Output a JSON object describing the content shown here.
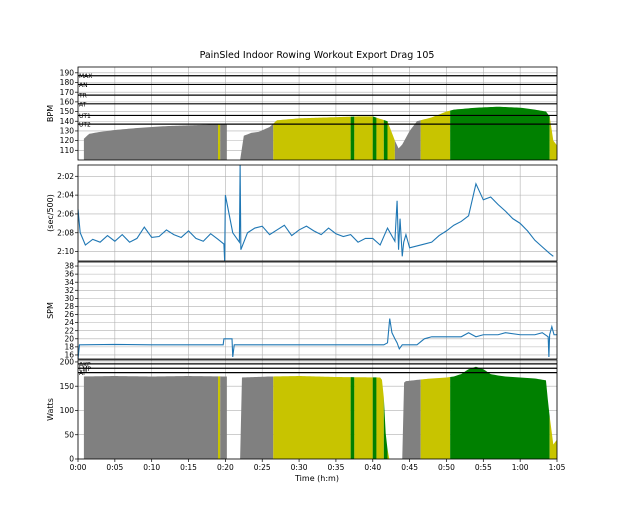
{
  "chart_data": {
    "title": "PainSled Indoor Rowing Workout Export Drag 105",
    "xlabel": "Time (h:m)",
    "x_unit": "minutes",
    "x_ticks": [
      "0:00",
      "0:05",
      "0:10",
      "0:15",
      "0:20",
      "0:25",
      "0:30",
      "0:35",
      "0:40",
      "0:45",
      "0:50",
      "0:55",
      "1:00",
      "1:05"
    ],
    "xlim": [
      0,
      65
    ],
    "colors": {
      "grey": "#808080",
      "yellow": "#c8c400",
      "green": "#008000",
      "line": "#1f77b4"
    },
    "segments": [
      {
        "from": 0.8,
        "to": 19.0,
        "zone": "grey"
      },
      {
        "from": 19.0,
        "to": 19.3,
        "zone": "yellow"
      },
      {
        "from": 19.3,
        "to": 20.2,
        "zone": "grey"
      },
      {
        "from": 22.0,
        "to": 26.5,
        "zone": "grey"
      },
      {
        "from": 26.5,
        "to": 37.0,
        "zone": "yellow"
      },
      {
        "from": 37.0,
        "to": 37.5,
        "zone": "green"
      },
      {
        "from": 37.5,
        "to": 40.0,
        "zone": "yellow"
      },
      {
        "from": 40.0,
        "to": 40.5,
        "zone": "green"
      },
      {
        "from": 40.5,
        "to": 41.5,
        "zone": "yellow"
      },
      {
        "from": 41.5,
        "to": 42.0,
        "zone": "green"
      },
      {
        "from": 42.0,
        "to": 43.0,
        "zone": "yellow"
      },
      {
        "from": 43.0,
        "to": 46.5,
        "zone": "grey"
      },
      {
        "from": 46.5,
        "to": 50.5,
        "zone": "yellow"
      },
      {
        "from": 50.5,
        "to": 64.0,
        "zone": "green"
      },
      {
        "from": 64.0,
        "to": 65.0,
        "zone": "yellow"
      }
    ],
    "panels": [
      {
        "id": "hr",
        "type": "area",
        "ylabel": "BPM",
        "ylim": [
          100,
          196
        ],
        "yticks": [
          110,
          120,
          130,
          140,
          150,
          160,
          170,
          180,
          190
        ],
        "zones": [
          {
            "label": "MAX",
            "value": 187
          },
          {
            "label": "AN",
            "value": 178
          },
          {
            "label": "TR",
            "value": 167
          },
          {
            "label": "AT",
            "value": 158
          },
          {
            "label": "UT1",
            "value": 146
          },
          {
            "label": "UT2",
            "value": 137
          }
        ],
        "x": [
          0,
          0.8,
          1.5,
          3,
          5,
          8,
          12,
          16,
          19,
          20.2,
          20.3,
          22,
          22.5,
          23.5,
          24.5,
          26,
          27,
          30,
          34,
          38,
          40,
          42,
          43,
          43.5,
          44,
          45,
          46,
          48,
          50,
          51,
          54,
          57,
          60,
          62,
          63.5,
          64,
          64.5,
          65
        ],
        "y": [
          100,
          122,
          127,
          129,
          131,
          133,
          135,
          136,
          137,
          137,
          100,
          100,
          125,
          128,
          129,
          134,
          141,
          143,
          144,
          145,
          145,
          140,
          120,
          112,
          116,
          130,
          140,
          144,
          150,
          152,
          154,
          155,
          154,
          152,
          150,
          145,
          120,
          115
        ]
      },
      {
        "id": "pace",
        "type": "line",
        "ylabel": "(sec/500)",
        "ylim": [
          131,
          120.8
        ],
        "yticks": [
          122,
          124,
          126,
          128,
          130
        ],
        "ytick_labels": [
          "2:02",
          "2:04",
          "2:06",
          "2:08",
          "2:10"
        ],
        "x": [
          0,
          0.3,
          1,
          2,
          3,
          4,
          5,
          6,
          7,
          8,
          9,
          10,
          11,
          12,
          13,
          14,
          15,
          16,
          17,
          18,
          19,
          19.8,
          19.9,
          20,
          21,
          21.9,
          22,
          22.1,
          23,
          24,
          25,
          26,
          27,
          28,
          29,
          30,
          31,
          32,
          33,
          34,
          35,
          36,
          37,
          38,
          39,
          40,
          41,
          42,
          43,
          43.3,
          43.5,
          43.7,
          44,
          44.2,
          44.5,
          45,
          46,
          47,
          48,
          49,
          50,
          51,
          52,
          53,
          54,
          55,
          56,
          57,
          58,
          59,
          60,
          61,
          62,
          63,
          64,
          64.5
        ],
        "y": [
          125.5,
          128,
          129.3,
          128.7,
          129,
          128.3,
          128.9,
          128.2,
          129,
          128.6,
          127.4,
          128.5,
          128.4,
          127.7,
          128.2,
          128.5,
          127.8,
          128.6,
          128.9,
          128.1,
          128.7,
          129.2,
          131,
          124,
          128,
          129,
          120.8,
          129.8,
          128,
          127.5,
          127.3,
          128.2,
          127.7,
          127.2,
          128.3,
          127.7,
          127.3,
          127.8,
          128.2,
          127.5,
          128.1,
          128.4,
          128.2,
          129,
          128.6,
          128.6,
          129.3,
          127.5,
          128.9,
          124.6,
          129.8,
          126.5,
          130.5,
          129,
          128.2,
          129.6,
          129.4,
          129.2,
          129,
          128.3,
          127.8,
          127.2,
          126.8,
          126.2,
          122.8,
          124.5,
          124.2,
          125,
          125.7,
          126.5,
          127,
          127.8,
          128.8,
          129.5,
          130.2,
          130.5
        ]
      },
      {
        "id": "spm",
        "type": "line",
        "ylabel": "SPM",
        "ylim": [
          15,
          39
        ],
        "yticks": [
          16,
          18,
          20,
          22,
          24,
          26,
          28,
          30,
          32,
          34,
          36,
          38
        ],
        "x": [
          0,
          0.2,
          0.3,
          5,
          10,
          15,
          19.7,
          19.8,
          20,
          20.9,
          21,
          21.2,
          22,
          30,
          38,
          41,
          41.5,
          42,
          42.3,
          42.6,
          43,
          43.3,
          43.6,
          44,
          45,
          46,
          47,
          48,
          50,
          52,
          53,
          54,
          55,
          57,
          58,
          60,
          62,
          63,
          63.8,
          63.9,
          64,
          64.3,
          64.6,
          65
        ],
        "y": [
          15,
          18.5,
          18.5,
          18.6,
          18.5,
          18.5,
          18.5,
          20,
          20,
          20,
          15.5,
          18.5,
          18.5,
          18.5,
          18.5,
          18.5,
          18.5,
          19,
          25,
          21.5,
          20,
          19,
          17.5,
          18.5,
          18.5,
          18.5,
          20,
          20.5,
          20.5,
          20.5,
          21.5,
          20.5,
          21,
          21,
          21.5,
          21,
          21,
          21.5,
          20.5,
          15.5,
          21,
          23,
          21,
          21
        ]
      },
      {
        "id": "watts",
        "type": "area",
        "ylabel": "Watts",
        "ylim": [
          0,
          204
        ],
        "yticks": [
          0,
          50,
          100,
          150,
          200
        ],
        "zones": [
          {
            "label": "AKP",
            "value": 196
          },
          {
            "label": "LMP",
            "value": 187
          },
          {
            "label": "AP",
            "value": 178
          }
        ],
        "x": [
          0,
          0.1,
          0.3,
          5,
          10,
          15,
          20.2,
          20.3,
          22,
          22.2,
          26,
          30,
          35,
          41,
          41.4,
          41.7,
          42,
          42.2,
          44,
          44.1,
          44.3,
          46,
          48,
          50,
          51,
          52,
          53,
          54,
          55,
          56,
          57,
          58,
          60,
          62,
          63.5,
          63.9,
          64.5,
          65
        ],
        "y": [
          0,
          160,
          170,
          171,
          170,
          171,
          170,
          0,
          0,
          168,
          170,
          171,
          169,
          168,
          160,
          60,
          20,
          0,
          0,
          150,
          160,
          163,
          166,
          168,
          170,
          175,
          185,
          190,
          185,
          175,
          172,
          170,
          168,
          166,
          162,
          100,
          30,
          40
        ]
      }
    ]
  }
}
